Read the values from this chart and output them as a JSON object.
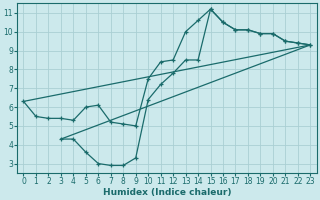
{
  "xlabel": "Humidex (Indice chaleur)",
  "background_color": "#cce9ec",
  "grid_color": "#aacfd4",
  "line_color": "#1a6b6b",
  "xlim": [
    -0.5,
    23.5
  ],
  "ylim": [
    2.5,
    11.5
  ],
  "xticks": [
    0,
    1,
    2,
    3,
    4,
    5,
    6,
    7,
    8,
    9,
    10,
    11,
    12,
    13,
    14,
    15,
    16,
    17,
    18,
    19,
    20,
    21,
    22,
    23
  ],
  "yticks": [
    3,
    4,
    5,
    6,
    7,
    8,
    9,
    10,
    11
  ],
  "line1_x": [
    0,
    1,
    2,
    3,
    4,
    5,
    6,
    7,
    8,
    9,
    10,
    11,
    12,
    13,
    14,
    15,
    16,
    17,
    18,
    19,
    20,
    21,
    22,
    23
  ],
  "line1_y": [
    6.3,
    5.5,
    5.4,
    5.4,
    5.3,
    6.0,
    6.1,
    5.2,
    5.1,
    5.0,
    7.5,
    8.4,
    8.5,
    10.0,
    10.6,
    11.2,
    10.5,
    10.1,
    10.1,
    9.9,
    9.9,
    9.5,
    9.4,
    9.3
  ],
  "line2_x": [
    3,
    4,
    5,
    6,
    7,
    8,
    9,
    10,
    11,
    12,
    13,
    14,
    15,
    16,
    17,
    18,
    19,
    20,
    21,
    22,
    23
  ],
  "line2_y": [
    4.3,
    4.3,
    3.6,
    3.0,
    2.9,
    2.9,
    3.3,
    6.4,
    7.2,
    7.8,
    8.5,
    8.5,
    11.2,
    10.5,
    10.1,
    10.1,
    9.9,
    9.9,
    9.5,
    9.4,
    9.3
  ],
  "line3_x": [
    0,
    23
  ],
  "line3_y": [
    6.3,
    9.3
  ],
  "line4_x": [
    3,
    23
  ],
  "line4_y": [
    4.3,
    9.3
  ]
}
